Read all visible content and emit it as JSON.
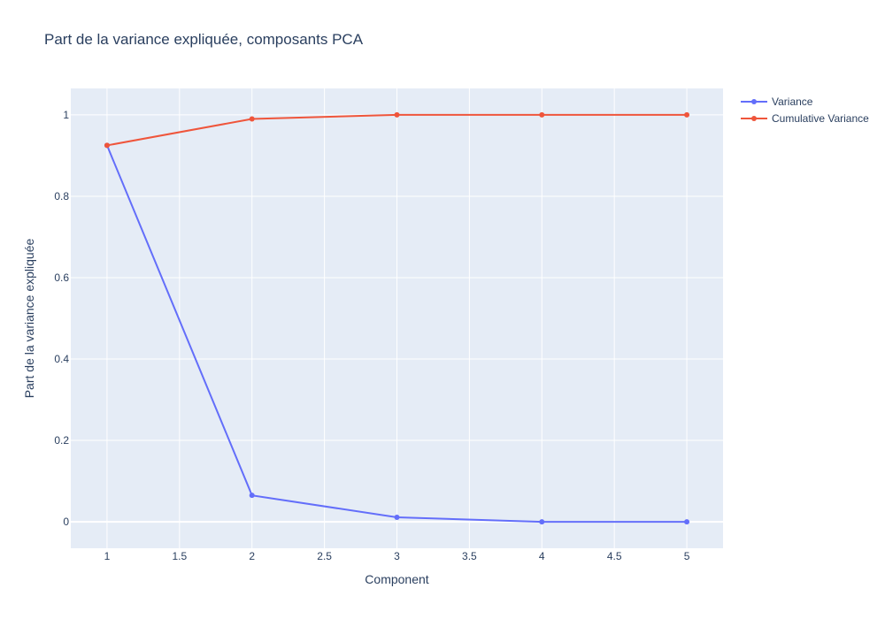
{
  "chart_data": {
    "type": "line",
    "title": "Part de la variance expliquée, composants PCA",
    "xlabel": "Component",
    "ylabel": "Part de la variance expliquée",
    "x": [
      1,
      2,
      3,
      4,
      5
    ],
    "xlim": [
      0.75,
      5.25
    ],
    "ylim": [
      -0.065,
      1.065
    ],
    "x_ticks": [
      1,
      1.5,
      2,
      2.5,
      3,
      3.5,
      4,
      4.5,
      5
    ],
    "x_tick_labels": [
      "1",
      "1.5",
      "2",
      "2.5",
      "3",
      "3.5",
      "4",
      "4.5",
      "5"
    ],
    "y_ticks": [
      0,
      0.2,
      0.4,
      0.6,
      0.8,
      1
    ],
    "y_tick_labels": [
      "0",
      "0.2",
      "0.4",
      "0.6",
      "0.8",
      "1"
    ],
    "grid": true,
    "legend_position": "top-right, outside plot",
    "plot_bgcolor": "#e5ecf6",
    "series": [
      {
        "name": "Variance",
        "color": "#636efa",
        "values": [
          0.925,
          0.065,
          0.011,
          0.0,
          0.0
        ]
      },
      {
        "name": "Cumulative Variance",
        "color": "#ef553b",
        "values": [
          0.925,
          0.99,
          1.0,
          1.0,
          1.0
        ]
      }
    ]
  }
}
